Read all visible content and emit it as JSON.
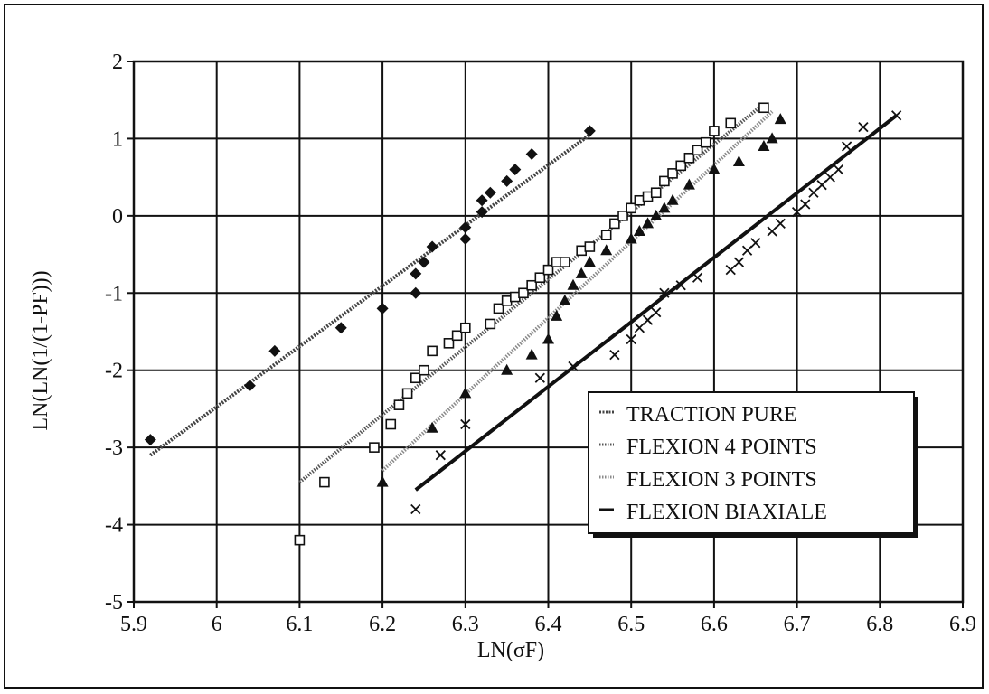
{
  "chart_data": {
    "type": "scatter",
    "xlabel": "LN(σF)",
    "ylabel": "LN(LN(1/(1-PF)))",
    "xlim": [
      5.9,
      6.9
    ],
    "ylim": [
      -5,
      2
    ],
    "xticks": [
      "5.9",
      "6",
      "6.1",
      "6.2",
      "6.3",
      "6.4",
      "6.5",
      "6.6",
      "6.7",
      "6.8",
      "6.9"
    ],
    "yticks": [
      "2",
      "1",
      "0",
      "-1",
      "-2",
      "-3",
      "-4",
      "-5"
    ],
    "grid": true,
    "legend_position": "bottom-right",
    "series": [
      {
        "name": "TRACTION PURE",
        "marker": "diamond",
        "color": "#111111",
        "line_style": "dashed-dark",
        "fit": [
          [
            5.92,
            -3.1
          ],
          [
            6.45,
            1.05
          ]
        ],
        "points": [
          [
            5.92,
            -2.9
          ],
          [
            6.04,
            -2.2
          ],
          [
            6.07,
            -1.75
          ],
          [
            6.15,
            -1.45
          ],
          [
            6.2,
            -1.2
          ],
          [
            6.24,
            -1.0
          ],
          [
            6.24,
            -0.75
          ],
          [
            6.25,
            -0.6
          ],
          [
            6.26,
            -0.4
          ],
          [
            6.3,
            -0.3
          ],
          [
            6.3,
            -0.15
          ],
          [
            6.32,
            0.05
          ],
          [
            6.32,
            0.2
          ],
          [
            6.33,
            0.3
          ],
          [
            6.35,
            0.45
          ],
          [
            6.36,
            0.6
          ],
          [
            6.38,
            0.8
          ],
          [
            6.45,
            1.1
          ]
        ]
      },
      {
        "name": "FLEXION 4 POINTS",
        "marker": "square-open",
        "color": "#111111",
        "line_style": "dotted-gray",
        "fit": [
          [
            6.1,
            -3.45
          ],
          [
            6.66,
            1.45
          ]
        ],
        "points": [
          [
            6.1,
            -4.2
          ],
          [
            6.13,
            -3.45
          ],
          [
            6.19,
            -3.0
          ],
          [
            6.21,
            -2.7
          ],
          [
            6.22,
            -2.45
          ],
          [
            6.23,
            -2.3
          ],
          [
            6.24,
            -2.1
          ],
          [
            6.25,
            -2.0
          ],
          [
            6.26,
            -1.75
          ],
          [
            6.28,
            -1.65
          ],
          [
            6.29,
            -1.55
          ],
          [
            6.3,
            -1.45
          ],
          [
            6.33,
            -1.4
          ],
          [
            6.34,
            -1.2
          ],
          [
            6.35,
            -1.1
          ],
          [
            6.36,
            -1.05
          ],
          [
            6.37,
            -1.0
          ],
          [
            6.38,
            -0.9
          ],
          [
            6.39,
            -0.8
          ],
          [
            6.4,
            -0.7
          ],
          [
            6.41,
            -0.6
          ],
          [
            6.42,
            -0.6
          ],
          [
            6.44,
            -0.45
          ],
          [
            6.45,
            -0.4
          ],
          [
            6.47,
            -0.25
          ],
          [
            6.48,
            -0.1
          ],
          [
            6.49,
            0.0
          ],
          [
            6.5,
            0.1
          ],
          [
            6.51,
            0.2
          ],
          [
            6.52,
            0.25
          ],
          [
            6.53,
            0.3
          ],
          [
            6.54,
            0.45
          ],
          [
            6.55,
            0.55
          ],
          [
            6.56,
            0.65
          ],
          [
            6.57,
            0.75
          ],
          [
            6.58,
            0.85
          ],
          [
            6.59,
            0.95
          ],
          [
            6.6,
            1.1
          ],
          [
            6.62,
            1.2
          ],
          [
            6.66,
            1.4
          ]
        ]
      },
      {
        "name": "FLEXION 3 POINTS",
        "marker": "triangle",
        "color": "#111111",
        "line_style": "dotted-light",
        "fit": [
          [
            6.2,
            -3.3
          ],
          [
            6.67,
            1.35
          ]
        ],
        "points": [
          [
            6.2,
            -3.45
          ],
          [
            6.26,
            -2.75
          ],
          [
            6.3,
            -2.3
          ],
          [
            6.35,
            -2.0
          ],
          [
            6.38,
            -1.8
          ],
          [
            6.4,
            -1.6
          ],
          [
            6.41,
            -1.3
          ],
          [
            6.42,
            -1.1
          ],
          [
            6.43,
            -0.9
          ],
          [
            6.44,
            -0.75
          ],
          [
            6.45,
            -0.6
          ],
          [
            6.47,
            -0.45
          ],
          [
            6.5,
            -0.3
          ],
          [
            6.51,
            -0.2
          ],
          [
            6.52,
            -0.1
          ],
          [
            6.53,
            0.0
          ],
          [
            6.54,
            0.1
          ],
          [
            6.55,
            0.2
          ],
          [
            6.57,
            0.4
          ],
          [
            6.6,
            0.6
          ],
          [
            6.63,
            0.7
          ],
          [
            6.66,
            0.9
          ],
          [
            6.67,
            1.0
          ],
          [
            6.68,
            1.25
          ]
        ]
      },
      {
        "name": "FLEXION BIAXIALE",
        "marker": "x",
        "color": "#111111",
        "line_style": "solid-thick",
        "fit": [
          [
            6.24,
            -3.55
          ],
          [
            6.82,
            1.3
          ]
        ],
        "points": [
          [
            6.24,
            -3.8
          ],
          [
            6.27,
            -3.1
          ],
          [
            6.3,
            -2.7
          ],
          [
            6.39,
            -2.1
          ],
          [
            6.43,
            -1.95
          ],
          [
            6.48,
            -1.8
          ],
          [
            6.5,
            -1.6
          ],
          [
            6.51,
            -1.45
          ],
          [
            6.52,
            -1.35
          ],
          [
            6.53,
            -1.25
          ],
          [
            6.54,
            -1.0
          ],
          [
            6.56,
            -0.9
          ],
          [
            6.58,
            -0.8
          ],
          [
            6.62,
            -0.7
          ],
          [
            6.63,
            -0.6
          ],
          [
            6.64,
            -0.45
          ],
          [
            6.65,
            -0.35
          ],
          [
            6.67,
            -0.2
          ],
          [
            6.68,
            -0.1
          ],
          [
            6.7,
            0.05
          ],
          [
            6.71,
            0.15
          ],
          [
            6.72,
            0.3
          ],
          [
            6.73,
            0.4
          ],
          [
            6.74,
            0.5
          ],
          [
            6.75,
            0.6
          ],
          [
            6.76,
            0.9
          ],
          [
            6.78,
            1.15
          ],
          [
            6.82,
            1.3
          ]
        ]
      }
    ]
  }
}
